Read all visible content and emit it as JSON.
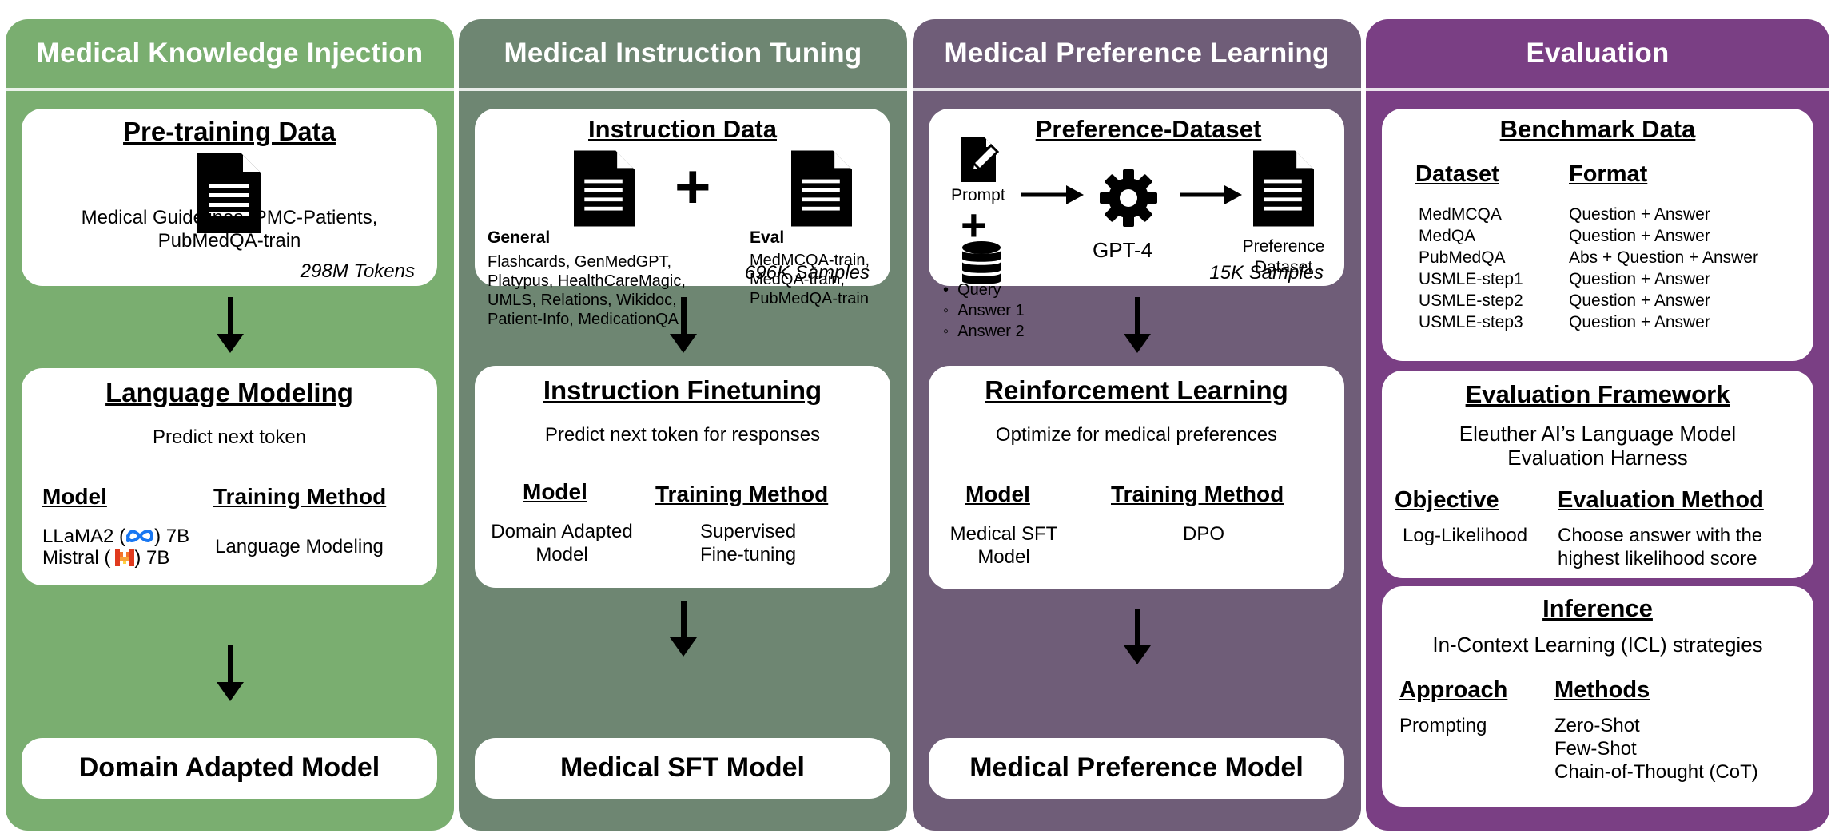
{
  "columns": [
    {
      "title": "Medical Knowledge Injection",
      "data_box": {
        "heading": "Pre-training Data",
        "description": "Medical Guidelines, PMC-Patients,\nPubMedQA-train",
        "size": "298M Tokens"
      },
      "method_box": {
        "heading": "Language Modeling",
        "objective": "Predict next token",
        "model_label": "Model",
        "training_label": "Training Method",
        "model_line1_pre": "LLaMA2 (",
        "model_line1_post": ") 7B",
        "model_line2_pre": "Mistral (",
        "model_line2_post": ") 7B",
        "training_value": "Language Modeling"
      },
      "output": "Domain Adapted Model"
    },
    {
      "title": "Medical Instruction Tuning",
      "data_box": {
        "heading": "Instruction Data",
        "general_label": "General",
        "eval_label": "Eval",
        "plus": "+",
        "general_text": "Flashcards, GenMedGPT,\nPlatypus, HealthCareMagic,\nUMLS, Relations, Wikidoc,\nPatient-Info, MedicationQA",
        "eval_text": "MedMCQA-train,\nMedQA-train,\nPubMedQA-train",
        "size": "696K Samples"
      },
      "method_box": {
        "heading": "Instruction Finetuning",
        "objective": "Predict next token for responses",
        "model_label": "Model",
        "training_label": "Training Method",
        "model_value": "Domain Adapted\nModel",
        "training_value": "Supervised\nFine-tuning"
      },
      "output": "Medical SFT Model"
    },
    {
      "title": "Medical Preference Learning",
      "data_box": {
        "heading": "Preference-Dataset",
        "prompt_label": "Prompt",
        "plus": "+",
        "list": [
          "Query",
          "Answer 1",
          "Answer 2"
        ],
        "engine": "GPT-4",
        "result": "Preference\nDataset",
        "size": "15K Samples"
      },
      "method_box": {
        "heading": "Reinforcement Learning",
        "objective": "Optimize for medical preferences",
        "model_label": "Model",
        "training_label": "Training Method",
        "model_value": "Medical SFT\nModel",
        "training_value": "DPO"
      },
      "output": "Medical Preference Model"
    },
    {
      "title": "Evaluation",
      "benchmark": {
        "heading": "Benchmark Data",
        "dataset_label": "Dataset",
        "format_label": "Format",
        "rows": [
          {
            "dataset": "MedMCQA",
            "format": "Question + Answer"
          },
          {
            "dataset": "MedQA",
            "format": "Question + Answer"
          },
          {
            "dataset": "PubMedQA",
            "format": "Abs + Question + Answer"
          },
          {
            "dataset": "USMLE-step1",
            "format": "Question + Answer"
          },
          {
            "dataset": "USMLE-step2",
            "format": "Question + Answer"
          },
          {
            "dataset": "USMLE-step3",
            "format": "Question + Answer"
          }
        ]
      },
      "framework": {
        "heading": "Evaluation Framework",
        "description": "Eleuther AI’s Language Model\nEvaluation Harness",
        "objective_label": "Objective",
        "method_label": "Evaluation Method",
        "objective_value": "Log-Likelihood",
        "method_value": "Choose answer with the\nhighest likelihood score"
      },
      "inference": {
        "heading": "Inference",
        "description": "In-Context Learning (ICL) strategies",
        "approach_label": "Approach",
        "methods_label": "Methods",
        "approach_value": "Prompting",
        "methods_value": "Zero-Shot\nFew-Shot\nChain-of-Thought (CoT)"
      }
    }
  ],
  "icons": {
    "document": "document-icon",
    "plus": "plus-icon",
    "arrow": "arrow-icon",
    "gear": "gear-icon",
    "database": "database-icon",
    "edit": "edit-document-icon",
    "meta": "meta-logo-icon",
    "mistral": "mistral-logo-icon"
  },
  "colors": {
    "knowledge_injection": "#7aae70",
    "instruction_tuning": "#6e8672",
    "preference_learning": "#6f5d78",
    "evaluation": "#7a3f84",
    "meta_blue": "#1877f2",
    "mistral_orange": "#f4742a"
  }
}
